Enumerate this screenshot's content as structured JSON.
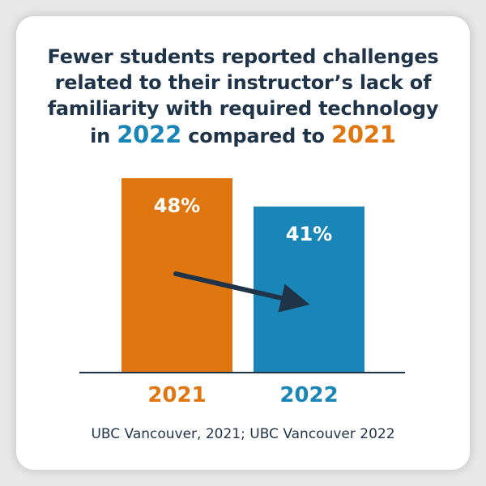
{
  "title": {
    "line1": "Fewer students reported challenges",
    "line2": "related to their instructor’s lack of",
    "line3": "familiarity with required technology",
    "line4_pre": "in ",
    "line4_hl1": "2022",
    "line4_mid": " compared to ",
    "line4_hl2": "2021"
  },
  "source": "UBC Vancouver, 2021; UBC Vancouver 2022",
  "colors": {
    "orange": "#e0760f",
    "blue": "#1a86b8",
    "navy": "#1f3449"
  },
  "chart_data": {
    "type": "bar",
    "categories": [
      "2021",
      "2022"
    ],
    "values": [
      48,
      41
    ],
    "data_labels": [
      "48%",
      "41%"
    ],
    "bar_colors": [
      "#e0760f",
      "#1a86b8"
    ],
    "ylim": [
      0,
      48
    ],
    "grid": false,
    "legend": "none",
    "annotation": "downward-trend-arrow"
  }
}
